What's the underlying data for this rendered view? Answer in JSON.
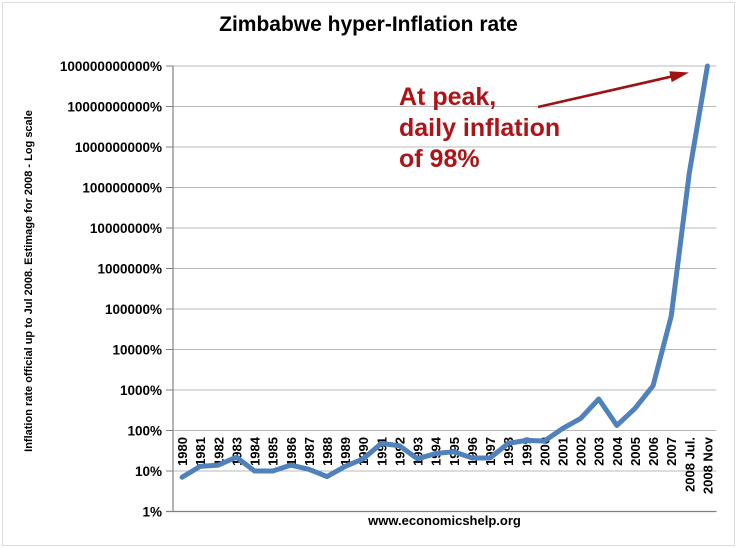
{
  "chart_data": {
    "type": "line",
    "title": "Zimbabwe hyper-Inflation rate",
    "xlabel": "",
    "ylabel": "Inflation rate official up to Jul 2008. Estimage for 2008 - Log scale",
    "y_scale": "log",
    "ylim": [
      1,
      100000000000
    ],
    "grid": true,
    "legend": "none",
    "y_ticks": [
      "100000000000%",
      "10000000000%",
      "1000000000%",
      "100000000%",
      "10000000%",
      "1000000%",
      "100000%",
      "10000%",
      "1000%",
      "100%",
      "10%",
      "1%"
    ],
    "categories": [
      "1980",
      "1981",
      "1982",
      "1983",
      "1984",
      "1985",
      "1986",
      "1987",
      "1988",
      "1989",
      "1990",
      "1991",
      "1992",
      "1993",
      "1994",
      "1995",
      "1996",
      "1997",
      "1998",
      "1999",
      "2000",
      "2001",
      "2002",
      "2003",
      "2004",
      "2005",
      "2006",
      "2007",
      "2008 Jul.",
      "2008 Nov"
    ],
    "series": [
      {
        "name": "Inflation rate %",
        "values": [
          7,
          13,
          14,
          22,
          10,
          10,
          14,
          11,
          7.3,
          13,
          20,
          48,
          42,
          20,
          27,
          30,
          21,
          21,
          48,
          57,
          55,
          112,
          199,
          599,
          133,
          350,
          1281,
          66212,
          231000000,
          100000000000
        ]
      }
    ],
    "line_color": "#4F81BD"
  },
  "annotation": {
    "lines": [
      "At peak,",
      "daily inflation",
      "of 98%"
    ],
    "color": "#AC1418",
    "arrow_color": "#9E1115"
  },
  "footer": {
    "text": "www.economicshelp.org"
  }
}
